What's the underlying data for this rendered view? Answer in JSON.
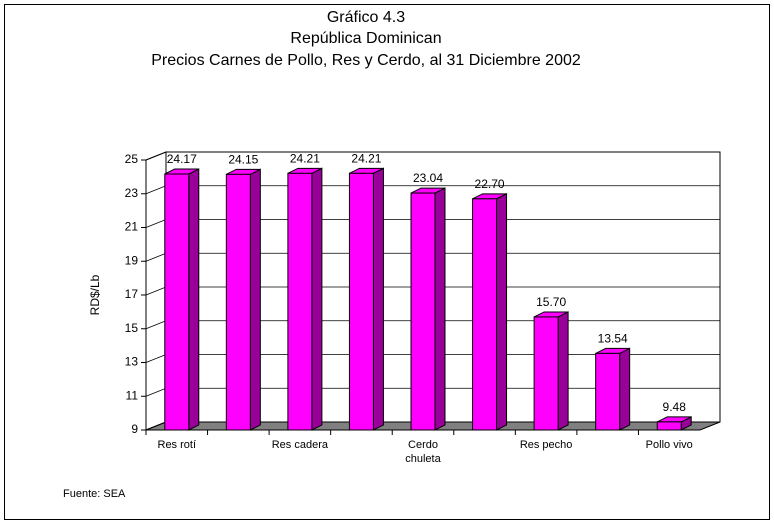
{
  "chart_data": {
    "type": "bar3d",
    "title": "Gráfico 4.3",
    "subtitle": "República Dominican",
    "subtitle2": "Precios Carnes de Pollo, Res y Cerdo, al 31 Diciembre 2002",
    "y_label": "RD$/Lb",
    "source": "Fuente: SEA",
    "categories": [
      "Res rotí",
      null,
      "Res cadera",
      null,
      "Cerdo chuleta",
      null,
      "Res pecho",
      null,
      "Pollo vivo"
    ],
    "values": [
      24.17,
      24.15,
      24.21,
      24.21,
      23.04,
      22.7,
      15.7,
      13.54,
      9.48
    ],
    "value_labels": [
      "24.17",
      "24.15",
      "24.21",
      "24.21",
      "23.04",
      "22.70",
      "15.70",
      "13.54",
      "9.48"
    ],
    "color": "#ff00ff",
    "side_color": "#990099",
    "ylim": [
      9,
      25
    ],
    "yticks": [
      9,
      11,
      13,
      15,
      17,
      19,
      21,
      23,
      25
    ],
    "grid": true
  }
}
